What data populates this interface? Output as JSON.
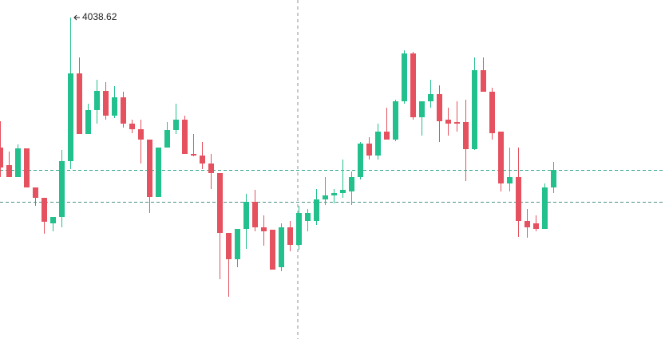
{
  "chart_data": {
    "type": "candlestick",
    "up_color": "#22c08c",
    "down_color": "#e5515e",
    "ylim": [
      3937.87,
      4044.12
    ],
    "open": [
      3997.87,
      3992.37,
      3988.62,
      3997.62,
      3985.37,
      3982.12,
      3974.12,
      3976.12,
      3993.62,
      4021.12,
      4002.12,
      4009.62,
      4015.62,
      4007.87,
      4013.62,
      4005.37,
      4003.62,
      4000.37,
      3982.37,
      3997.87,
      4003.37,
      4006.62,
      3995.87,
      3995.37,
      3992.87,
      3989.87,
      3971.12,
      3962.87,
      3972.37,
      3980.87,
      3972.87,
      3972.12,
      3960.37,
      3972.87,
      3967.37,
      3974.87,
      3974.87,
      3981.62,
      3982.87,
      3983.62,
      3984.12,
      3988.62,
      3999.12,
      3995.37,
      4002.87,
      4000.37,
      4012.37,
      4027.37,
      4007.37,
      4012.37,
      4014.62,
      4006.62,
      4005.87,
      4005.87,
      3997.37,
      4022.12,
      4015.37,
      4002.87,
      3986.62,
      3988.62,
      3974.87,
      3974.12,
      3972.37,
      3985.37
    ],
    "high": [
      4006.12,
      3996.62,
      3998.87,
      3997.62,
      3985.37,
      3982.12,
      3976.12,
      3997.12,
      4038.62,
      4026.12,
      4011.62,
      4019.12,
      4018.37,
      4017.12,
      4015.37,
      4006.62,
      4006.62,
      4000.37,
      3997.87,
      4005.87,
      4011.62,
      4007.87,
      4002.12,
      3999.62,
      3995.87,
      3989.87,
      3971.12,
      3972.37,
      3983.37,
      3984.62,
      3976.62,
      3972.12,
      3974.12,
      3974.87,
      3979.62,
      3978.62,
      3984.87,
      3988.62,
      3984.87,
      3994.12,
      3990.37,
      3999.62,
      4001.12,
      4005.37,
      4010.37,
      4012.87,
      4028.37,
      4027.87,
      4012.37,
      4019.12,
      4017.37,
      4010.37,
      4012.37,
      4012.87,
      4026.12,
      4026.12,
      4016.62,
      4002.87,
      3997.87,
      3997.87,
      3978.62,
      3976.62,
      3986.62,
      3993.37
    ],
    "low": [
      3988.62,
      3988.62,
      3988.62,
      3985.37,
      3979.62,
      3970.87,
      3971.62,
      3972.87,
      3991.12,
      4002.12,
      4002.12,
      4005.37,
      4006.62,
      4007.12,
      4004.12,
      4002.37,
      3992.87,
      3977.37,
      3982.37,
      3997.87,
      4002.12,
      3995.87,
      3995.12,
      3991.12,
      3984.87,
      3956.62,
      3951.12,
      3960.37,
      3966.12,
      3971.62,
      3967.12,
      3959.62,
      3959.12,
      3965.37,
      3965.87,
      3971.62,
      3973.62,
      3979.87,
      3980.37,
      3982.12,
      3979.87,
      3987.87,
      3994.12,
      3994.12,
      4000.37,
      3999.87,
      4011.62,
      4006.62,
      4001.62,
      4010.37,
      3999.62,
      4001.62,
      4002.87,
      3987.37,
      3997.12,
      4015.37,
      4000.37,
      3984.12,
      3984.12,
      3969.87,
      3969.62,
      3971.62,
      3972.37,
      3983.62
    ],
    "close": [
      3991.62,
      3988.62,
      3997.62,
      3985.37,
      3982.12,
      3974.62,
      3976.12,
      3993.62,
      4021.12,
      4002.12,
      4009.62,
      4015.62,
      4007.87,
      4013.62,
      4005.37,
      4003.62,
      4000.37,
      3982.37,
      3997.87,
      4003.37,
      4006.62,
      3995.87,
      3995.37,
      3992.87,
      3989.87,
      3971.12,
      3962.87,
      3972.37,
      3980.87,
      3972.87,
      3971.62,
      3959.62,
      3972.87,
      3967.37,
      3977.37,
      3977.37,
      3981.62,
      3982.87,
      3983.62,
      3984.62,
      3988.62,
      3999.12,
      3995.37,
      4002.87,
      4000.37,
      4012.37,
      4027.37,
      4007.37,
      4012.37,
      4014.62,
      4006.12,
      4005.37,
      4005.37,
      3997.37,
      4022.12,
      4015.37,
      4002.37,
      3986.62,
      3988.62,
      3974.87,
      3972.87,
      3972.37,
      3985.37,
      3990.87
    ],
    "high_label": 4038.62
  }
}
